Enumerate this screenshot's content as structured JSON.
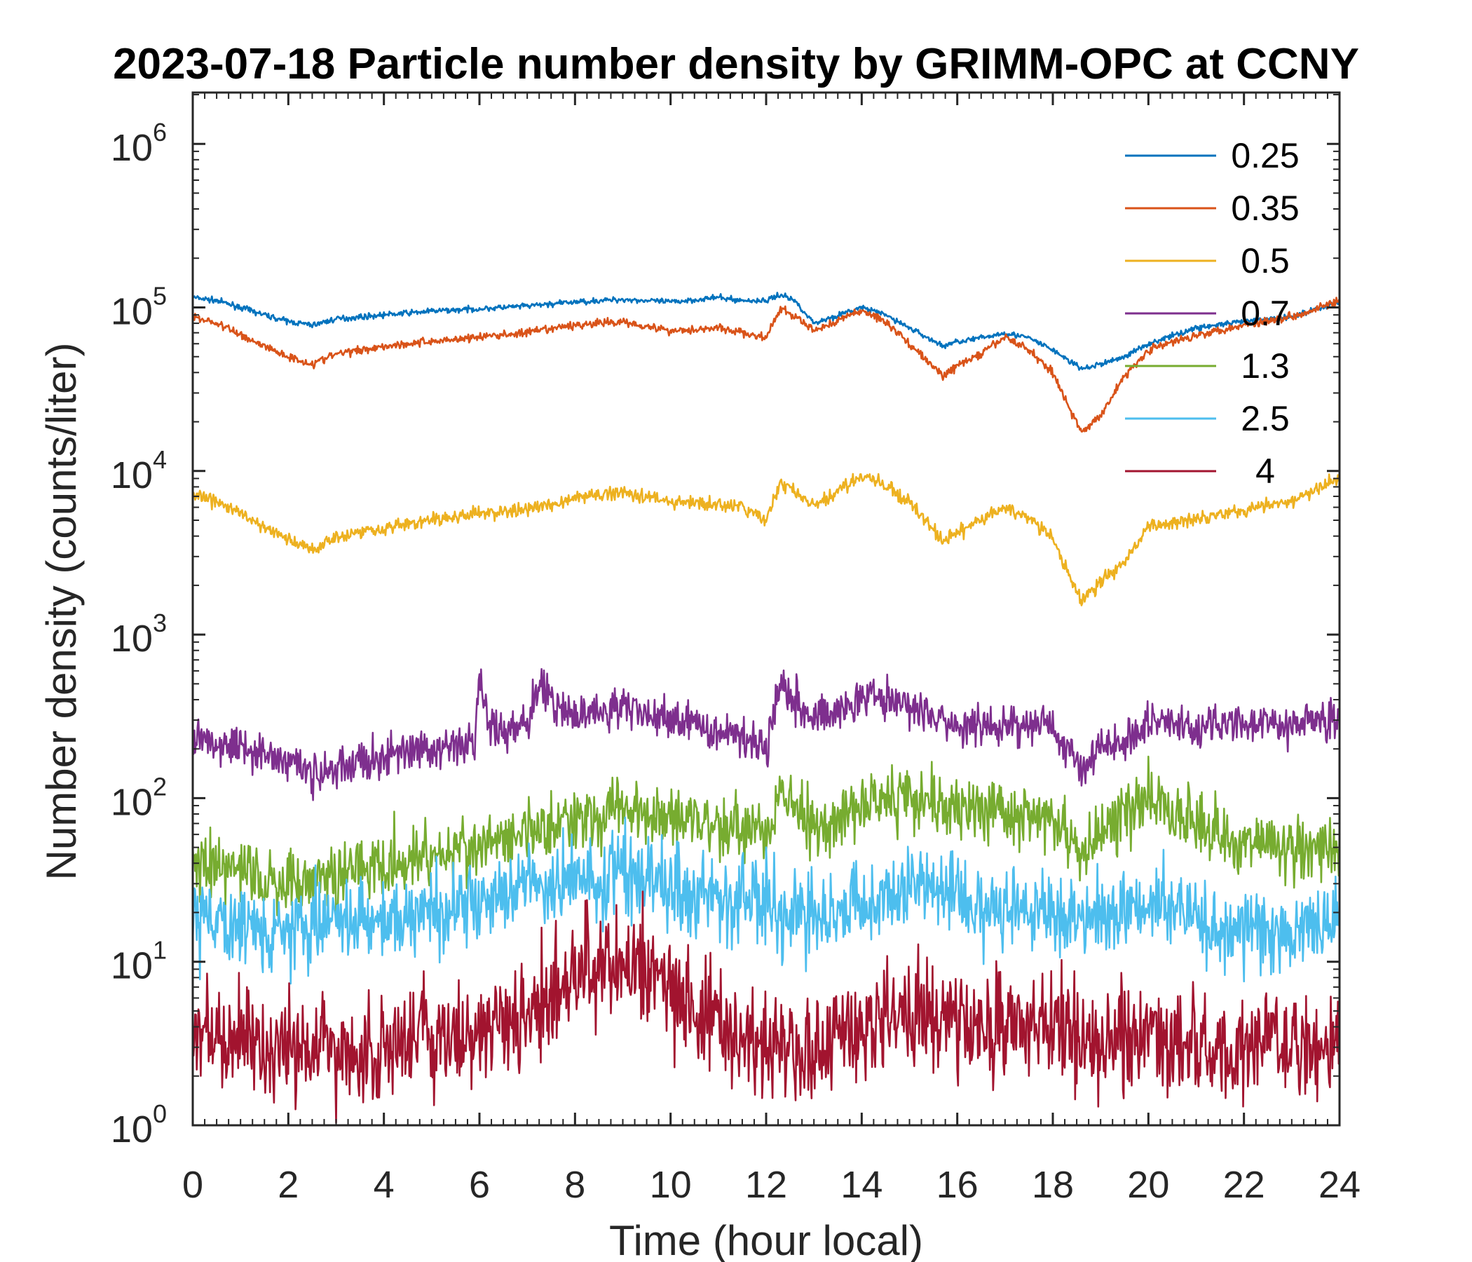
{
  "chart_data": {
    "type": "line",
    "title": "2023-07-18 Particle number density by GRIMM-OPC at CCNY",
    "xlabel": "Time (hour local)",
    "ylabel": "Number density (counts/liter)",
    "xlim": [
      0,
      24
    ],
    "ylim": [
      1,
      2000000
    ],
    "yscale": "log",
    "xticks": [
      0,
      2,
      4,
      6,
      8,
      10,
      12,
      14,
      16,
      18,
      20,
      22,
      24
    ],
    "yticks": [
      {
        "value": 1,
        "base": "10",
        "exp": "0"
      },
      {
        "value": 10,
        "base": "10",
        "exp": "1"
      },
      {
        "value": 100,
        "base": "10",
        "exp": "2"
      },
      {
        "value": 1000,
        "base": "10",
        "exp": "3"
      },
      {
        "value": 10000,
        "base": "10",
        "exp": "4"
      },
      {
        "value": 100000,
        "base": "10",
        "exp": "5"
      },
      {
        "value": 1000000,
        "base": "10",
        "exp": "6"
      }
    ],
    "legend_position": "top-right",
    "series": [
      {
        "name": "0.25",
        "color": "#0072BD",
        "noise": 0.012,
        "x": [
          0,
          0.5,
          1,
          1.5,
          2,
          2.5,
          3,
          4,
          5,
          6,
          7,
          8,
          9,
          10,
          11,
          11.5,
          12,
          12.3,
          12.6,
          13,
          14,
          14.5,
          15,
          15.7,
          16,
          16.5,
          17,
          17.5,
          18,
          18.6,
          19,
          19.5,
          20,
          21,
          22,
          23,
          24
        ],
        "values": [
          115000,
          110000,
          100000,
          90000,
          82000,
          78000,
          85000,
          90000,
          95000,
          98000,
          102000,
          108000,
          112000,
          108000,
          115000,
          110000,
          110000,
          120000,
          110000,
          80000,
          100000,
          90000,
          75000,
          58000,
          62000,
          65000,
          70000,
          65000,
          55000,
          42000,
          45000,
          50000,
          60000,
          75000,
          82000,
          88000,
          108000
        ]
      },
      {
        "name": "0.35",
        "color": "#D95319",
        "noise": 0.018,
        "x": [
          0,
          0.5,
          1,
          1.5,
          2,
          2.5,
          3,
          4,
          5,
          6,
          7,
          8,
          9,
          10,
          11,
          11.5,
          12,
          12.3,
          12.6,
          13,
          14,
          14.5,
          15,
          15.7,
          16,
          16.5,
          17,
          17.5,
          18,
          18.6,
          19,
          19.5,
          20,
          21,
          22,
          23,
          24
        ],
        "values": [
          88000,
          80000,
          68000,
          58000,
          50000,
          45000,
          52000,
          58000,
          62000,
          66000,
          70000,
          78000,
          82000,
          72000,
          75000,
          70000,
          65000,
          98000,
          88000,
          72000,
          96000,
          82000,
          60000,
          38000,
          44000,
          52000,
          66000,
          55000,
          40000,
          17000,
          22000,
          38000,
          55000,
          68000,
          78000,
          88000,
          110000
        ]
      },
      {
        "name": "0.5",
        "color": "#EDB120",
        "noise": 0.03,
        "x": [
          0,
          0.5,
          1,
          1.5,
          2,
          2.5,
          3,
          4,
          5,
          6,
          7,
          8,
          9,
          10,
          11,
          11.5,
          12,
          12.3,
          12.6,
          13,
          14,
          14.5,
          15,
          15.7,
          16,
          16.5,
          17,
          17.5,
          18,
          18.6,
          19,
          19.5,
          20,
          21,
          22,
          23,
          24
        ],
        "values": [
          7000,
          6500,
          5500,
          4500,
          3800,
          3300,
          4000,
          4500,
          5000,
          5500,
          5800,
          6800,
          7500,
          6500,
          6200,
          6000,
          5000,
          8500,
          7500,
          6000,
          9500,
          8000,
          6500,
          3700,
          4200,
          5000,
          6000,
          5200,
          3800,
          1600,
          2100,
          2800,
          4500,
          5200,
          5800,
          6500,
          9000
        ]
      },
      {
        "name": "0.7",
        "color": "#7E2F8E",
        "noise": 0.09,
        "x": [
          0,
          1,
          2,
          2.5,
          3,
          4,
          5,
          5.9,
          6,
          6.2,
          6.5,
          7,
          7.2,
          8,
          9,
          10,
          11,
          11.5,
          12,
          12.3,
          12.6,
          13,
          14,
          15,
          16,
          17,
          18,
          18.6,
          19,
          19.5,
          20,
          21,
          22,
          23,
          24
        ],
        "values": [
          240,
          210,
          170,
          140,
          150,
          180,
          200,
          210,
          550,
          280,
          260,
          300,
          450,
          320,
          360,
          300,
          260,
          250,
          200,
          550,
          400,
          300,
          420,
          380,
          260,
          280,
          280,
          150,
          210,
          220,
          300,
          270,
          290,
          280,
          310
        ]
      },
      {
        "name": "1.3",
        "color": "#77AC30",
        "noise": 0.14,
        "x": [
          0,
          2,
          3,
          4,
          5,
          6,
          7,
          8,
          9,
          10,
          11,
          12,
          12.3,
          13,
          14,
          15,
          16,
          17,
          18,
          18.6,
          19,
          20,
          21,
          22,
          23,
          24
        ],
        "values": [
          40,
          30,
          35,
          40,
          45,
          50,
          60,
          75,
          85,
          80,
          70,
          60,
          110,
          65,
          90,
          110,
          85,
          80,
          75,
          45,
          60,
          100,
          70,
          55,
          50,
          45
        ]
      },
      {
        "name": "2.5",
        "color": "#4DBEEE",
        "noise": 0.18,
        "x": [
          0,
          2,
          4,
          6,
          7,
          8,
          9,
          10,
          11,
          12,
          13,
          14,
          15,
          16,
          17,
          18,
          19,
          20,
          21,
          22,
          23,
          24
        ],
        "values": [
          18,
          16,
          18,
          22,
          28,
          32,
          35,
          30,
          26,
          22,
          20,
          22,
          30,
          24,
          22,
          20,
          18,
          24,
          18,
          16,
          15,
          18
        ]
      },
      {
        "name": "4",
        "color": "#A2142F",
        "noise": 0.24,
        "x": [
          0,
          2,
          4,
          6,
          7,
          8,
          9,
          10,
          11,
          12,
          13,
          14,
          15,
          16,
          17,
          18,
          19,
          20,
          21,
          22,
          23,
          24
        ],
        "values": [
          3.5,
          3,
          3,
          3.5,
          5,
          9,
          10,
          7,
          4,
          3,
          2.5,
          4,
          5,
          4,
          4.5,
          4,
          3,
          4,
          3,
          3,
          3,
          3
        ]
      }
    ]
  }
}
